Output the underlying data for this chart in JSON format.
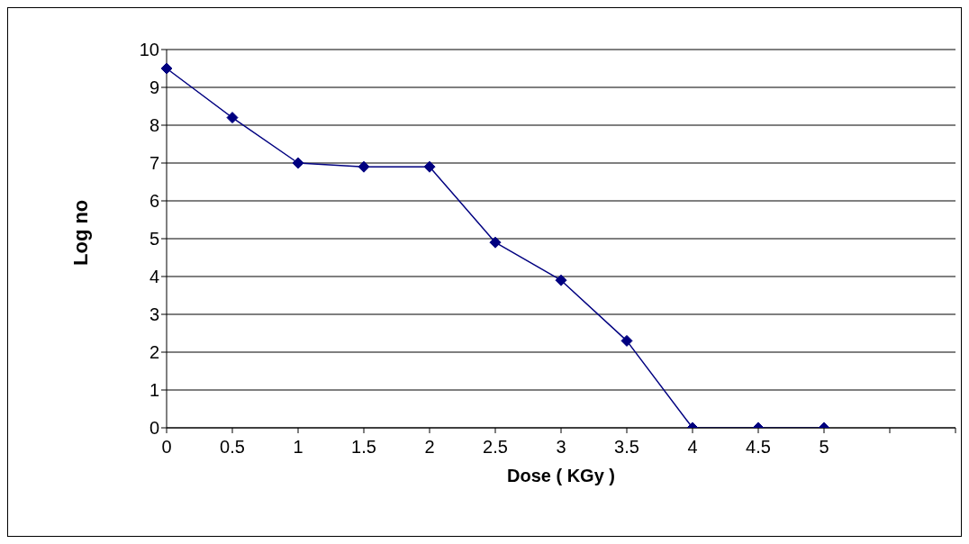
{
  "chart_data": {
    "type": "line",
    "xlabel": "Dose ( KGy )",
    "ylabel": "Log no",
    "categories": [
      "0",
      "0.5",
      "1",
      "1.5",
      "2",
      "2.5",
      "3",
      "3.5",
      "4",
      "4.5",
      "5",
      null,
      null
    ],
    "values": [
      9.5,
      8.2,
      7.0,
      6.9,
      6.9,
      4.9,
      3.9,
      2.3,
      0,
      0,
      0,
      null,
      null
    ],
    "color": "#000080",
    "ylim": [
      0,
      10
    ],
    "yticks": [
      0,
      1,
      2,
      3,
      4,
      5,
      6,
      7,
      8,
      9,
      10
    ],
    "grid": "y",
    "marker": "diamond"
  }
}
